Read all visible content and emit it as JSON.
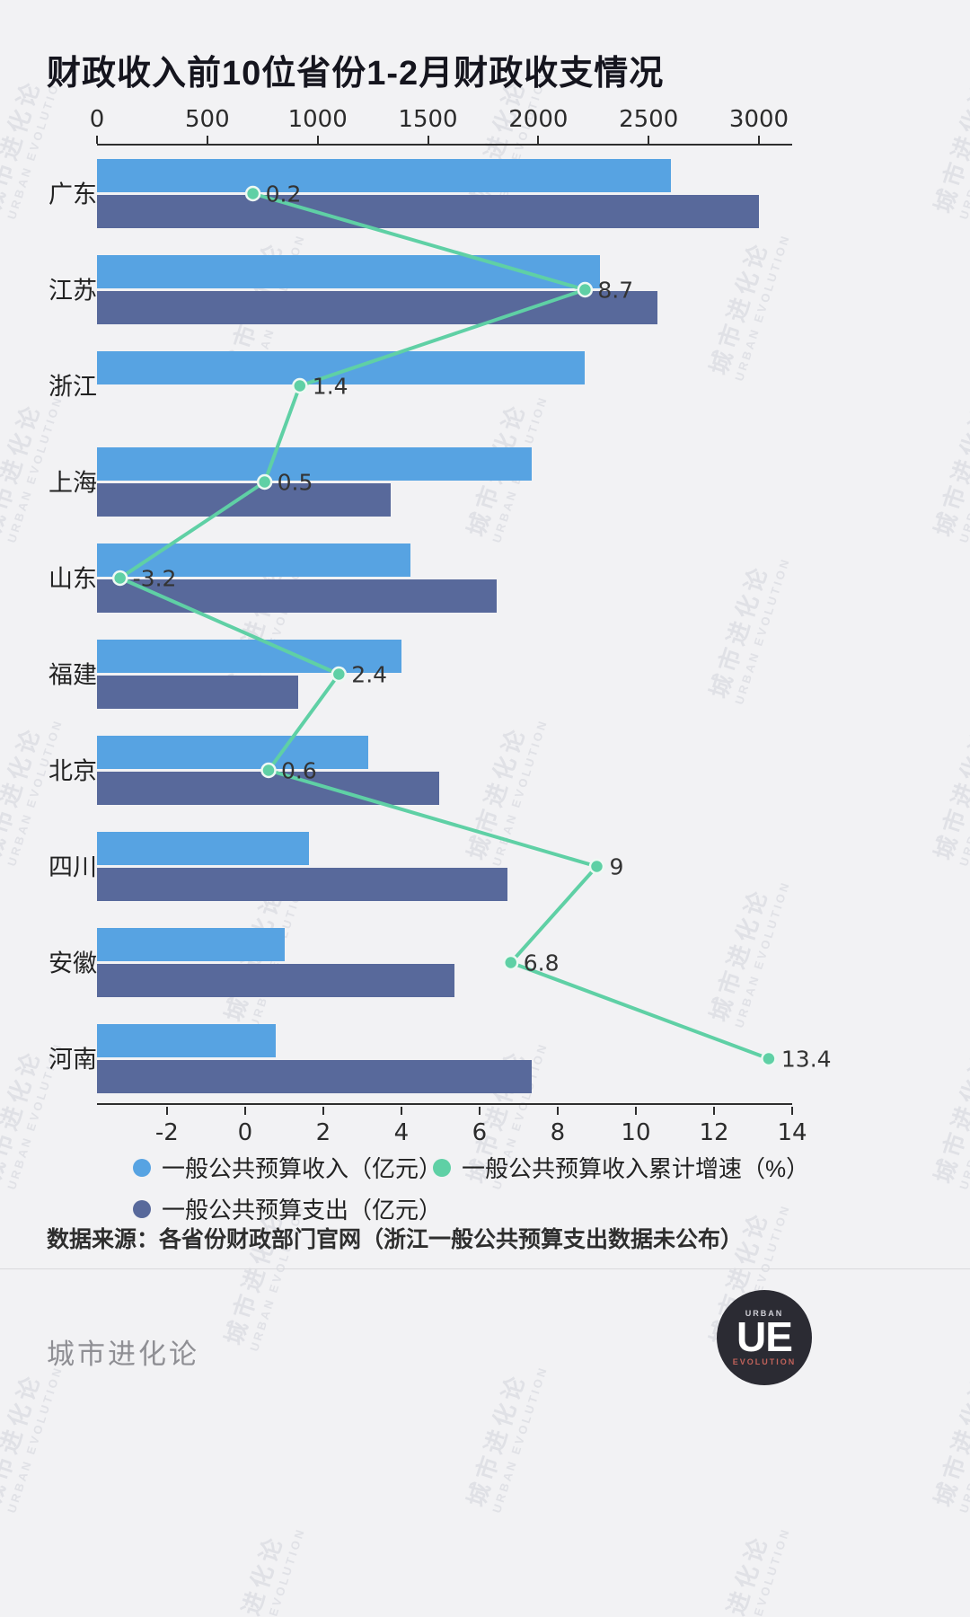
{
  "title": "财政收入前10位省份1-2月财政收支情况",
  "chart_data": {
    "type": "bar",
    "orientation": "horizontal",
    "title": "财政收入前10位省份1-2月财政收支情况",
    "categories": [
      "广东",
      "江苏",
      "浙江",
      "上海",
      "山东",
      "福建",
      "北京",
      "四川",
      "安徽",
      "河南"
    ],
    "series": [
      {
        "name": "一般公共预算收入（亿元）",
        "color": "#57a3e2",
        "axis": "top",
        "values": [
          2600,
          2280,
          2210,
          1970,
          1420,
          1380,
          1230,
          960,
          850,
          810
        ]
      },
      {
        "name": "一般公共预算支出（亿元）",
        "color": "#58699b",
        "axis": "top",
        "values": [
          3000,
          2540,
          null,
          1330,
          1810,
          910,
          1550,
          1860,
          1620,
          1970
        ]
      }
    ],
    "line_series": {
      "name": "一般公共预算收入累计增速（%）",
      "color": "#5fd0a5",
      "axis": "bottom",
      "values": [
        0.2,
        8.7,
        1.4,
        0.5,
        -3.2,
        2.4,
        0.6,
        9,
        6.8,
        13.4
      ],
      "labels": [
        "0.2",
        "8.7",
        "1.4",
        "0.5",
        "-3.2",
        "2.4",
        "0.6",
        "9",
        "6.8",
        "13.4"
      ]
    },
    "top_axis": {
      "min": 0,
      "max": 3000,
      "ticks": [
        0,
        500,
        1000,
        1500,
        2000,
        2500,
        3000
      ]
    },
    "bottom_axis": {
      "min": -2,
      "max": 14,
      "ticks": [
        -2,
        0,
        2,
        4,
        6,
        8,
        10,
        12,
        14
      ]
    },
    "grid": false,
    "legend_position": "bottom",
    "note": "浙江一般公共预算支出数据未公布"
  },
  "source_note": "数据来源：各省份财政部门官网（浙江一般公共预算支出数据未公布）",
  "watermark": {
    "line1": "城市进化论",
    "line2": "URBAN EVOLUTION"
  },
  "footer": {
    "brand": "城市进化论",
    "logo_main": "UE",
    "logo_top": "URBAN",
    "logo_bottom": "EVOLUTION"
  },
  "colors": {
    "background": "#f2f2f4",
    "revenue_bar": "#57a3e2",
    "expenditure_bar": "#58699b",
    "growth_line": "#5fd0a5",
    "title_text": "#15151e"
  }
}
